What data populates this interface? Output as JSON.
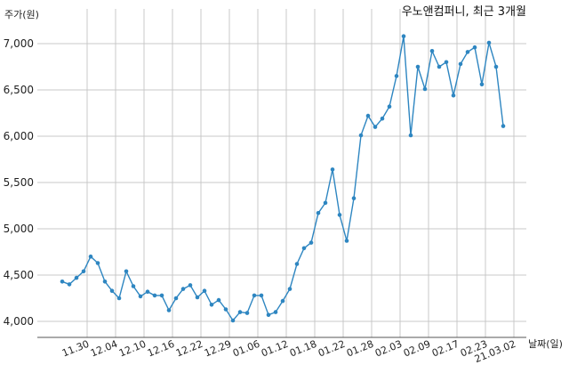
{
  "chart_data": {
    "type": "line",
    "title": "우노앤컴퍼니, 최근 3개월",
    "ylabel": "주가(원)",
    "xlabel": "날짜(일)",
    "ylim": [
      3950,
      7250
    ],
    "yticks": [
      4000,
      4500,
      5000,
      5500,
      6000,
      6500,
      7000
    ],
    "ytick_labels": [
      "4,000",
      "4,500",
      "5,000",
      "5,500",
      "6,000",
      "6,500",
      "7,000"
    ],
    "xtick_labels": [
      "11.30",
      "12.04",
      "12.10",
      "12.16",
      "12.22",
      "12.29",
      "01.06",
      "01.12",
      "01.18",
      "01.22",
      "01.28",
      "02.03",
      "02.09",
      "02.17",
      "02.23",
      "21.03.02"
    ],
    "xtick_positions": [
      3.5,
      7.5,
      11.5,
      15.5,
      19.5,
      23.5,
      27.5,
      31.5,
      35.5,
      39.5,
      43.5,
      47.5,
      51.5,
      55.5,
      59.5,
      63.5
    ],
    "grid": true,
    "series": [
      {
        "color": "#2e86c1",
        "values": [
          4430,
          4400,
          4470,
          4540,
          4700,
          4630,
          4430,
          4330,
          4250,
          4540,
          4380,
          4270,
          4320,
          4280,
          4280,
          4120,
          4250,
          4350,
          4390,
          4260,
          4330,
          4180,
          4230,
          4130,
          4010,
          4100,
          4090,
          4280,
          4280,
          4070,
          4100,
          4220,
          4350,
          4620,
          4790,
          4850,
          5170,
          5280,
          5640,
          5150,
          4870,
          5330,
          6010,
          6220,
          6100,
          6190,
          6320,
          6650,
          7080,
          6010,
          6750,
          6510,
          6920,
          6750,
          6800,
          6440,
          6780,
          6910,
          6960,
          6560,
          7010,
          6750,
          6110
        ]
      }
    ]
  }
}
